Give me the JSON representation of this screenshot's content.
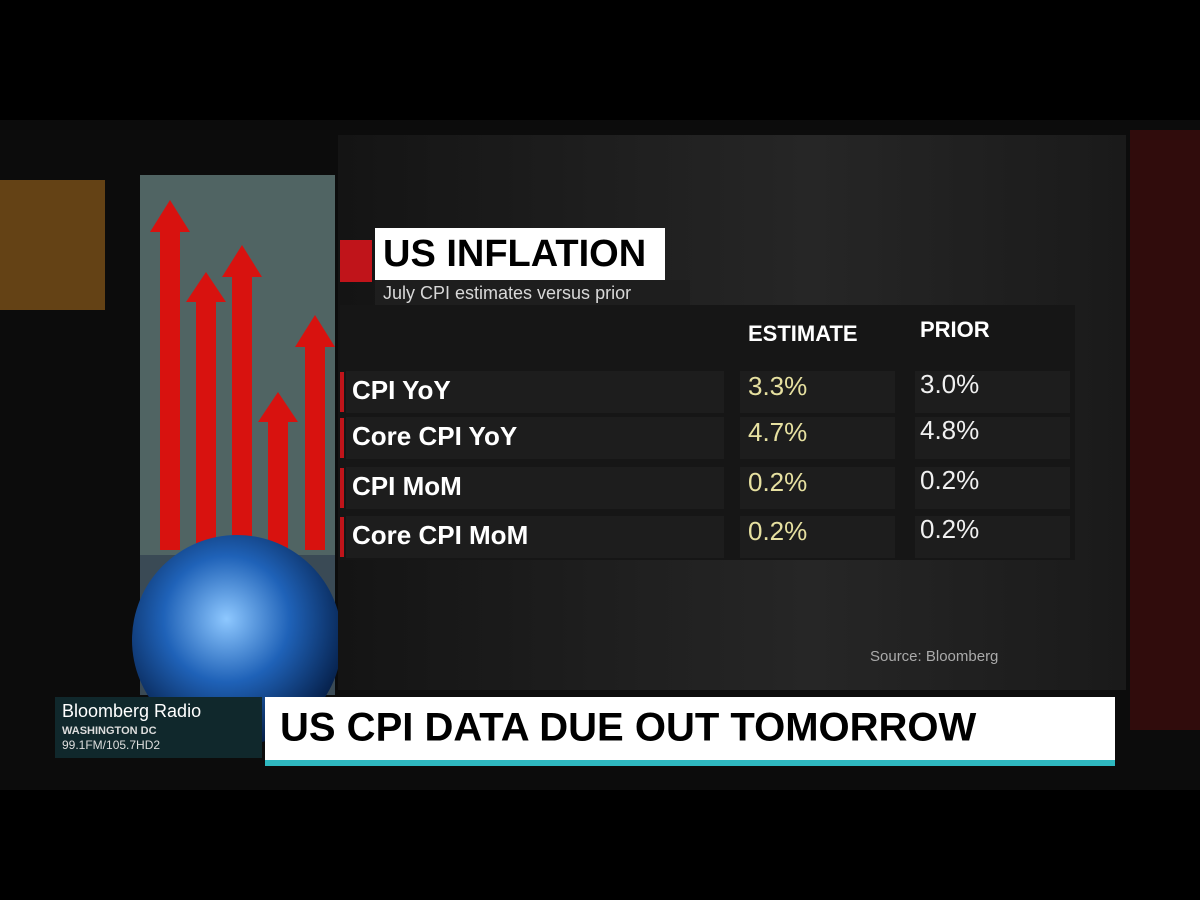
{
  "header": {
    "title": "US INFLATION",
    "subtitle": "July CPI estimates versus prior"
  },
  "table": {
    "columns": [
      "ESTIMATE",
      "PRIOR"
    ],
    "rows": [
      [
        "CPI YoY",
        "3.3%",
        "3.0%"
      ],
      [
        "Core CPI YoY",
        "4.7%",
        "4.8%"
      ],
      [
        "CPI MoM",
        "0.2%",
        "0.2%"
      ],
      [
        "Core CPI MoM",
        "0.2%",
        "0.2%"
      ]
    ]
  },
  "source": "Source: Bloomberg",
  "lower_third": {
    "station": "Bloomberg Radio",
    "city": "WASHINGTON DC",
    "frequency": "99.1FM/105.7HD2",
    "headline": "US CPI DATA DUE OUT TOMORROW"
  }
}
